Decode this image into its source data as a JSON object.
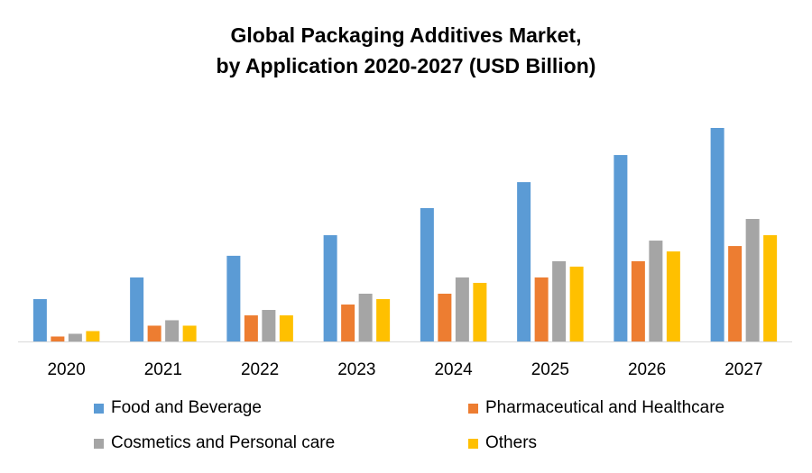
{
  "chart_data": {
    "type": "bar",
    "title_line1": "Global Packaging Additives Market,",
    "title_line2": "by Application 2020-2027 (USD Billion)",
    "xlabel": "",
    "ylabel": "",
    "categories": [
      "2020",
      "2021",
      "2022",
      "2023",
      "2024",
      "2025",
      "2026",
      "2027"
    ],
    "series": [
      {
        "name": "Food and Beverage",
        "color": "#5B9BD5",
        "values": [
          7.9,
          11.9,
          15.9,
          19.7,
          24.7,
          29.5,
          34.5,
          39.5
        ]
      },
      {
        "name": "Pharmaceutical and Healthcare",
        "color": "#ED7D31",
        "values": [
          1.0,
          3.0,
          4.9,
          6.9,
          8.9,
          11.9,
          14.9,
          17.7
        ]
      },
      {
        "name": "Cosmetics and Personal care",
        "color": "#A5A5A5",
        "values": [
          1.5,
          4.0,
          5.9,
          8.9,
          11.9,
          14.9,
          18.7,
          22.7
        ]
      },
      {
        "name": "Others",
        "color": "#FFC000",
        "values": [
          2.0,
          3.0,
          4.9,
          7.9,
          10.9,
          13.9,
          16.7,
          19.7
        ]
      }
    ],
    "ylim": [
      0,
      40
    ],
    "y_axis_visible": false,
    "grid": false,
    "legend_position": "bottom"
  }
}
